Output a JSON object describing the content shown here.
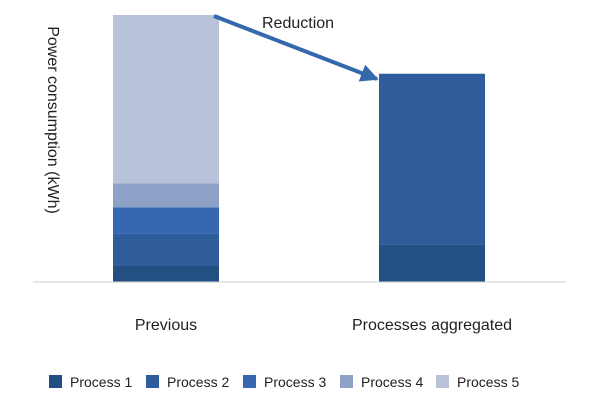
{
  "chart_data": {
    "type": "bar",
    "stacked": true,
    "categories": [
      "Previous",
      "Processes aggregated"
    ],
    "series": [
      {
        "name": "Process 1",
        "color": "#244f83",
        "values": [
          6,
          14
        ]
      },
      {
        "name": "Process 2",
        "color": "#2f5c9b",
        "values": [
          12,
          64
        ]
      },
      {
        "name": "Process 3",
        "color": "#3668b2",
        "values": [
          10,
          0
        ]
      },
      {
        "name": "Process 4",
        "color": "#8ea2c7",
        "values": [
          9,
          0
        ]
      },
      {
        "name": "Process 5",
        "color": "#b8c3d9",
        "values": [
          63,
          0
        ]
      }
    ],
    "ylabel": "Power consumption (kWh)",
    "xlabel": "",
    "title": "",
    "ylim": [
      0,
      100
    ],
    "grid": false,
    "legend": "bottom",
    "annotation": {
      "text": "Reduction",
      "from": "Previous",
      "to": "Processes aggregated",
      "color": "#3468ad"
    }
  }
}
